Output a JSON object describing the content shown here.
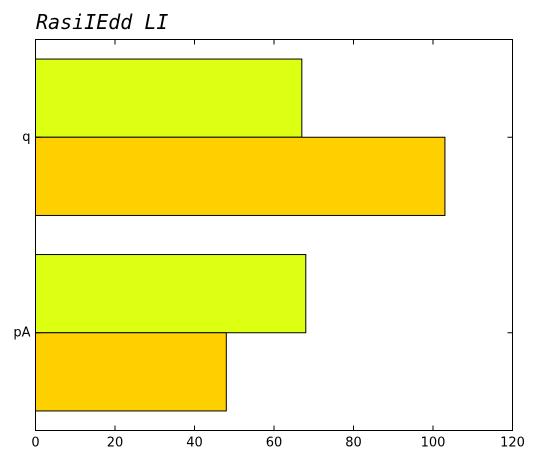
{
  "chart_data": {
    "type": "bar",
    "orientation": "horizontal",
    "title": "RasiIEdd LI",
    "xlabel": "",
    "ylabel": "",
    "xlim": [
      0,
      120
    ],
    "xticks": [
      0,
      20,
      40,
      60,
      80,
      100,
      120
    ],
    "categories": [
      "q",
      "pA"
    ],
    "series": [
      {
        "values": [
          67,
          68
        ],
        "color": "#ddff11"
      },
      {
        "values": [
          103,
          48
        ],
        "color": "#ffd000"
      }
    ],
    "grid": false,
    "legend": "none"
  }
}
